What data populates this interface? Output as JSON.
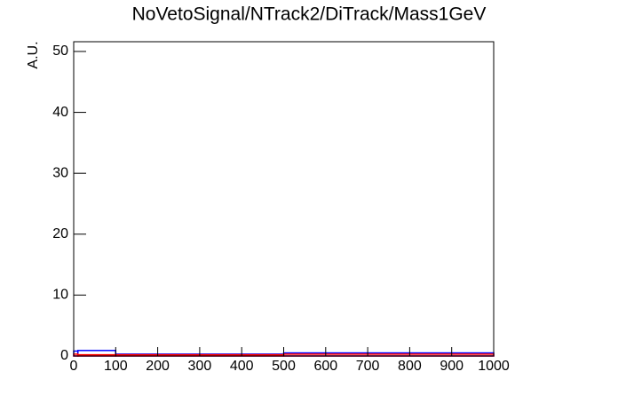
{
  "chart_data": {
    "type": "histogram",
    "title": "NoVetoSignal/NTrack2/DiTrack/Mass1GeV",
    "y_label": "A.U.",
    "bins": [
      0,
      10,
      100,
      500,
      1000
    ],
    "series": [
      {
        "color": "#0000ff",
        "values": [
          0.8,
          0.9,
          0.3,
          0.5
        ]
      },
      {
        "color": "#ff0000",
        "values": [
          0.3,
          0.2,
          0.2,
          0.3
        ]
      }
    ],
    "xlim": [
      0,
      1000
    ],
    "xticks": [
      0,
      100,
      200,
      300,
      400,
      500,
      600,
      700,
      800,
      900,
      1000
    ],
    "ylim": [
      0,
      51.6
    ],
    "yticks": [
      0,
      10,
      20,
      30,
      40,
      50
    ]
  }
}
